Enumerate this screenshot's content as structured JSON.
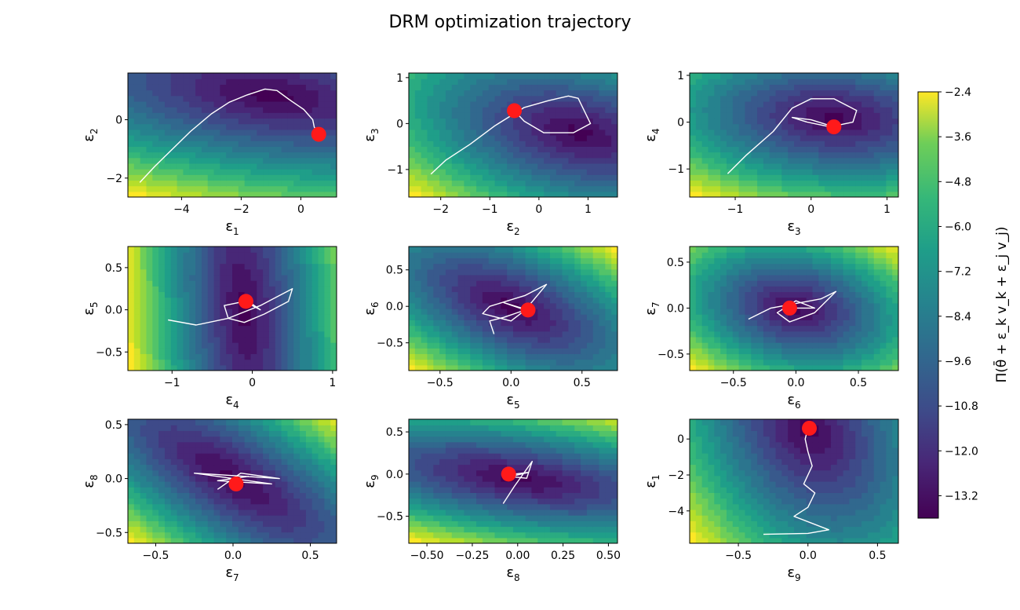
{
  "chart_data": {
    "type": "contour",
    "title": "DRM optimization trajectory",
    "colorbar": {
      "label": "Π(θ̄ + ε_k v_k + ε_j v_j)",
      "min": -13.8,
      "max": -2.4,
      "ticks": [
        "-2.4",
        "-3.6",
        "-4.8",
        "-6.0",
        "-7.2",
        "-8.4",
        "-9.6",
        "-10.8",
        "-12.0",
        "-13.2"
      ],
      "tick_values": [
        -2.4,
        -3.6,
        -4.8,
        -6.0,
        -7.2,
        -8.4,
        -9.6,
        -10.8,
        -12.0,
        -13.2
      ]
    },
    "panels": [
      {
        "xlabel": "ε",
        "xsub": "1",
        "ylabel": "ε",
        "ysub": "2",
        "xlim": [
          -5.8,
          1.2
        ],
        "ylim": [
          -2.65,
          1.6
        ],
        "xticks": [
          -4,
          -2,
          0
        ],
        "xtick_labels": [
          "−4",
          "−2",
          "0"
        ],
        "yticks": [
          -2,
          0
        ],
        "ytick_labels": [
          "−2",
          "0"
        ],
        "field": {
          "cx": -1.0,
          "cy": 0.85,
          "a": 0.07,
          "b": 0.6,
          "c": 0.15,
          "hot": "top-left"
        },
        "trajectory": [
          [
            -5.4,
            -2.15
          ],
          [
            -4.9,
            -1.6
          ],
          [
            -4.4,
            -1.1
          ],
          [
            -3.7,
            -0.4
          ],
          [
            -3.0,
            0.2
          ],
          [
            -2.4,
            0.6
          ],
          [
            -1.8,
            0.85
          ],
          [
            -1.2,
            1.05
          ],
          [
            -0.8,
            1.0
          ],
          [
            -0.4,
            0.7
          ],
          [
            0.1,
            0.35
          ],
          [
            0.4,
            0.0
          ],
          [
            0.45,
            -0.25
          ],
          [
            0.55,
            -0.45
          ]
        ],
        "final_point": [
          0.6,
          -0.5
        ]
      },
      {
        "xlabel": "ε",
        "xsub": "2",
        "ylabel": "ε",
        "ysub": "3",
        "xlim": [
          -2.65,
          1.6
        ],
        "ylim": [
          -1.6,
          1.1
        ],
        "xticks": [
          -2,
          -1,
          0,
          1
        ],
        "xtick_labels": [
          "−2",
          "−1",
          "0",
          "1"
        ],
        "yticks": [
          -1,
          0,
          1
        ],
        "ytick_labels": [
          "−1",
          "0",
          "1"
        ],
        "field": {
          "cx": 0.8,
          "cy": -0.2,
          "a": 0.45,
          "b": 1.6,
          "c": 0.6,
          "hot": "bottom-left"
        },
        "trajectory": [
          [
            -2.2,
            -1.1
          ],
          [
            -1.9,
            -0.8
          ],
          [
            -1.4,
            -0.45
          ],
          [
            -0.9,
            -0.05
          ],
          [
            -0.3,
            0.35
          ],
          [
            0.2,
            0.5
          ],
          [
            0.6,
            0.6
          ],
          [
            0.8,
            0.55
          ],
          [
            1.05,
            0.0
          ],
          [
            0.7,
            -0.2
          ],
          [
            0.1,
            -0.2
          ],
          [
            -0.3,
            0.05
          ],
          [
            -0.5,
            0.28
          ]
        ],
        "final_point": [
          -0.5,
          0.28
        ]
      },
      {
        "xlabel": "ε",
        "xsub": "3",
        "ylabel": "ε",
        "ysub": "4",
        "xlim": [
          -1.6,
          1.15
        ],
        "ylim": [
          -1.6,
          1.05
        ],
        "xticks": [
          -1,
          0,
          1
        ],
        "xtick_labels": [
          "−1",
          "0",
          "1"
        ],
        "yticks": [
          -1,
          0,
          1
        ],
        "ytick_labels": [
          "−1",
          "0",
          "1"
        ],
        "field": {
          "cx": 0.3,
          "cy": 0.1,
          "a": 1.1,
          "b": 2.2,
          "c": 0.4,
          "hot": "bottom-left"
        },
        "trajectory": [
          [
            -1.1,
            -1.1
          ],
          [
            -0.85,
            -0.7
          ],
          [
            -0.5,
            -0.2
          ],
          [
            -0.25,
            0.3
          ],
          [
            0.0,
            0.5
          ],
          [
            0.3,
            0.5
          ],
          [
            0.6,
            0.25
          ],
          [
            0.55,
            0.0
          ],
          [
            0.25,
            -0.1
          ],
          [
            -0.05,
            0.0
          ],
          [
            -0.25,
            0.1
          ],
          [
            0.0,
            0.05
          ],
          [
            0.3,
            -0.1
          ]
        ],
        "final_point": [
          0.3,
          -0.1
        ]
      },
      {
        "xlabel": "ε",
        "xsub": "4",
        "ylabel": "ε",
        "ysub": "5",
        "xlim": [
          -1.55,
          1.05
        ],
        "ylim": [
          -0.72,
          0.75
        ],
        "xticks": [
          -1,
          0,
          1
        ],
        "xtick_labels": [
          "−1",
          "0",
          "1"
        ],
        "yticks": [
          -0.5,
          0.0,
          0.5
        ],
        "ytick_labels": [
          "−0.5",
          "0.0",
          "0.5"
        ],
        "field": {
          "cx": -0.1,
          "cy": 0.0,
          "a": 7.0,
          "b": 0.8,
          "c": 1.0,
          "hot": "left"
        },
        "trajectory": [
          [
            -1.05,
            -0.12
          ],
          [
            -0.7,
            -0.18
          ],
          [
            -0.3,
            -0.1
          ],
          [
            0.1,
            0.05
          ],
          [
            0.5,
            0.25
          ],
          [
            0.45,
            0.1
          ],
          [
            0.15,
            -0.05
          ],
          [
            -0.1,
            -0.15
          ],
          [
            -0.3,
            -0.1
          ],
          [
            -0.35,
            0.05
          ],
          [
            -0.1,
            0.1
          ],
          [
            0.1,
            0.0
          ],
          [
            -0.05,
            0.1
          ]
        ],
        "final_point": [
          -0.08,
          0.1
        ]
      },
      {
        "xlabel": "ε",
        "xsub": "5",
        "ylabel": "ε",
        "ysub": "6",
        "xlim": [
          -0.72,
          0.75
        ],
        "ylim": [
          -0.88,
          0.82
        ],
        "xticks": [
          -0.5,
          0.0,
          0.5
        ],
        "xtick_labels": [
          "−0.5",
          "0.0",
          "0.5"
        ],
        "yticks": [
          -0.5,
          0.0,
          0.5
        ],
        "ytick_labels": [
          "−0.5",
          "0.0",
          "0.5"
        ],
        "field": {
          "cx": 0.0,
          "cy": 0.0,
          "a": 8.0,
          "b": 6.0,
          "c": 8.0,
          "hot": "top-right"
        },
        "trajectory": [
          [
            -0.12,
            -0.38
          ],
          [
            -0.15,
            -0.2
          ],
          [
            -0.05,
            -0.15
          ],
          [
            0.1,
            -0.05
          ],
          [
            0.25,
            0.3
          ],
          [
            0.1,
            0.15
          ],
          [
            -0.15,
            0.0
          ],
          [
            -0.2,
            -0.1
          ],
          [
            0.0,
            -0.2
          ],
          [
            0.1,
            -0.05
          ],
          [
            -0.05,
            0.05
          ],
          [
            0.12,
            -0.05
          ]
        ],
        "final_point": [
          0.12,
          -0.05
        ]
      },
      {
        "xlabel": "ε",
        "xsub": "6",
        "ylabel": "ε",
        "ysub": "7",
        "xlim": [
          -0.85,
          0.82
        ],
        "ylim": [
          -0.68,
          0.67
        ],
        "xticks": [
          -0.5,
          0.0,
          0.5
        ],
        "xtick_labels": [
          "−0.5",
          "0.0",
          "0.5"
        ],
        "yticks": [
          -0.5,
          0.0,
          0.5
        ],
        "ytick_labels": [
          "−0.5",
          "0.0",
          "0.5"
        ],
        "field": {
          "cx": 0.0,
          "cy": 0.0,
          "a": 6.0,
          "b": 9.0,
          "c": 3.0,
          "hot": "left"
        },
        "trajectory": [
          [
            -0.38,
            -0.12
          ],
          [
            -0.2,
            0.0
          ],
          [
            0.0,
            0.05
          ],
          [
            0.2,
            0.1
          ],
          [
            0.32,
            0.18
          ],
          [
            0.15,
            -0.05
          ],
          [
            -0.05,
            -0.15
          ],
          [
            -0.15,
            -0.05
          ],
          [
            0.0,
            0.08
          ],
          [
            0.15,
            0.0
          ],
          [
            -0.05,
            0.0
          ]
        ],
        "final_point": [
          -0.05,
          0.0
        ]
      },
      {
        "xlabel": "ε",
        "xsub": "7",
        "ylabel": "ε",
        "ysub": "8",
        "xlim": [
          -0.68,
          0.67
        ],
        "ylim": [
          -0.6,
          0.55
        ],
        "xticks": [
          -0.5,
          0.0,
          0.5
        ],
        "xtick_labels": [
          "−0.5",
          "0.0",
          "0.5"
        ],
        "yticks": [
          -0.5,
          0.0,
          0.5
        ],
        "ytick_labels": [
          "−0.5",
          "0.0",
          "0.5"
        ],
        "field": {
          "cx": 0.0,
          "cy": 0.0,
          "a": 9.0,
          "b": 9.0,
          "c": 14.0,
          "hot": "bottom-left"
        },
        "trajectory": [
          [
            -0.1,
            -0.1
          ],
          [
            0.05,
            0.05
          ],
          [
            0.3,
            0.0
          ],
          [
            -0.25,
            0.05
          ],
          [
            0.25,
            -0.05
          ],
          [
            -0.1,
            -0.02
          ],
          [
            0.1,
            0.02
          ],
          [
            0.0,
            0.0
          ],
          [
            0.02,
            -0.05
          ]
        ],
        "final_point": [
          0.02,
          -0.05
        ]
      },
      {
        "xlabel": "ε",
        "xsub": "8",
        "ylabel": "ε",
        "ysub": "9",
        "xlim": [
          -0.6,
          0.55
        ],
        "ylim": [
          -0.82,
          0.65
        ],
        "xticks": [
          -0.5,
          -0.25,
          0.0,
          0.25,
          0.5
        ],
        "xtick_labels": [
          "−0.50",
          "−0.25",
          "0.00",
          "0.25",
          "0.50"
        ],
        "yticks": [
          -0.5,
          0.0,
          0.5
        ],
        "ytick_labels": [
          "−0.5",
          "0.0",
          "0.5"
        ],
        "field": {
          "cx": 0.0,
          "cy": -0.05,
          "a": 5.0,
          "b": 14.0,
          "c": 8.0,
          "hot": "bottom-left"
        },
        "trajectory": [
          [
            -0.08,
            -0.35
          ],
          [
            -0.02,
            -0.15
          ],
          [
            0.03,
            0.0
          ],
          [
            0.08,
            0.15
          ],
          [
            0.05,
            -0.05
          ],
          [
            -0.04,
            -0.03
          ],
          [
            0.06,
            0.02
          ],
          [
            -0.02,
            0.0
          ]
        ],
        "final_point": [
          -0.05,
          0.0
        ]
      },
      {
        "xlabel": "ε",
        "xsub": "9",
        "ylabel": "ε",
        "ysub": "1",
        "xlim": [
          -0.85,
          0.65
        ],
        "ylim": [
          -5.8,
          1.1
        ],
        "xticks": [
          -0.5,
          0.0,
          0.5
        ],
        "xtick_labels": [
          "−0.5",
          "0.0",
          "0.5"
        ],
        "yticks": [
          -4,
          -2,
          0
        ],
        "ytick_labels": [
          "−4",
          "−2",
          "0"
        ],
        "field": {
          "cx": 0.0,
          "cy": 0.6,
          "a": 11.0,
          "b": 0.14,
          "c": 0.8,
          "hot": "bottom-left"
        },
        "trajectory": [
          [
            -0.32,
            -5.3
          ],
          [
            0.0,
            -5.25
          ],
          [
            0.15,
            -5.05
          ],
          [
            -0.1,
            -4.3
          ],
          [
            0.0,
            -3.8
          ],
          [
            0.05,
            -3.0
          ],
          [
            -0.03,
            -2.5
          ],
          [
            0.03,
            -1.5
          ],
          [
            0.0,
            -0.7
          ],
          [
            -0.02,
            0.0
          ],
          [
            0.0,
            0.6
          ]
        ],
        "final_point": [
          0.01,
          0.6
        ]
      }
    ]
  }
}
